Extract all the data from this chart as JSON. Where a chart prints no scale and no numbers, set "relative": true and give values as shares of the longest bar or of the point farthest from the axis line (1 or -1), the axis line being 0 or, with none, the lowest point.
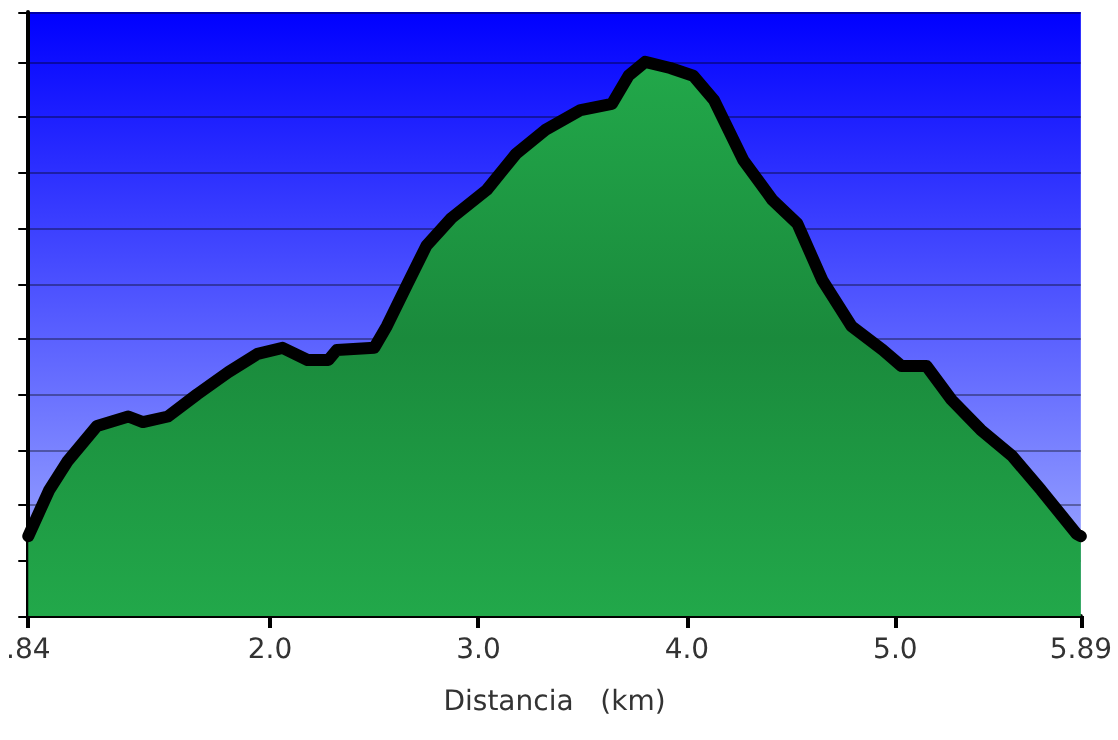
{
  "chart_data": {
    "type": "area",
    "xlabel": "Distancia   (km)",
    "relative": true,
    "grid": "y",
    "marker": "none",
    "line_style": "solid",
    "xlim": [
      0.84,
      5.89
    ],
    "xticks": [
      {
        "value": 0.84,
        "label": ".84"
      },
      {
        "value": 2,
        "label": "2.0"
      },
      {
        "value": 3,
        "label": "3.0"
      },
      {
        "value": 4,
        "label": "4.0"
      },
      {
        "value": 5,
        "label": "5.0"
      },
      5.89
    ],
    "series": [
      {
        "color": "#22a84a",
        "x": [
          0.84,
          0.94,
          1.03,
          1.17,
          1.32,
          1.39,
          1.51,
          1.65,
          1.8,
          1.94,
          2.06,
          2.18,
          2.28,
          2.32,
          2.5,
          2.56,
          2.66,
          2.75,
          2.87,
          3.04,
          3.18,
          3.32,
          3.49,
          3.64,
          3.72,
          3.8,
          3.92,
          4.03,
          4.13,
          4.27,
          4.41,
          4.53,
          4.65,
          4.79,
          4.94,
          5.03,
          5.15,
          5.27,
          5.41,
          5.56,
          5.7,
          5.87,
          5.89
        ],
        "values": [
          0.144,
          0.227,
          0.28,
          0.343,
          0.36,
          0.35,
          0.36,
          0.4,
          0.44,
          0.473,
          0.484,
          0.462,
          0.462,
          0.48,
          0.484,
          0.523,
          0.6,
          0.668,
          0.718,
          0.769,
          0.834,
          0.877,
          0.913,
          0.924,
          0.975,
          1.0,
          0.989,
          0.975,
          0.931,
          0.823,
          0.751,
          0.708,
          0.606,
          0.523,
          0.48,
          0.451,
          0.451,
          0.39,
          0.336,
          0.289,
          0.227,
          0.148,
          0.144
        ]
      }
    ]
  }
}
